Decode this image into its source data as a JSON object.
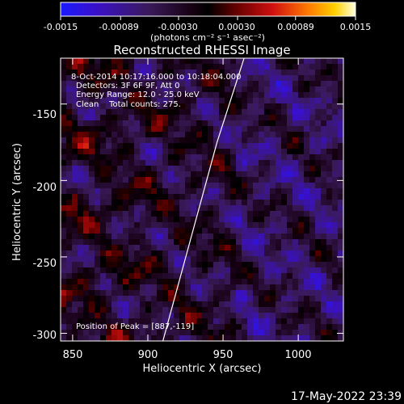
{
  "colorbar": {
    "ticks": [
      "-0.0015",
      "-0.00089",
      "-0.00030",
      "0.00030",
      "0.00089",
      "0.0015"
    ],
    "tick_values": [
      -0.0015,
      -0.00089,
      -0.0003,
      0.0003,
      0.00089,
      0.0015
    ],
    "range": [
      -0.0015,
      0.0015
    ],
    "unit_label": "(photons cm⁻² s⁻¹ asec⁻²)"
  },
  "chart_data": {
    "type": "heatmap",
    "title": "Reconstructed RHESSI Image",
    "xlabel": "Heliocentric X (arcsec)",
    "ylabel": "Heliocentric Y (arcsec)",
    "xlim": [
      842,
      1030
    ],
    "ylim": [
      -305,
      -120
    ],
    "xticks": [
      "850",
      "900",
      "950",
      "1000"
    ],
    "xtick_values": [
      850,
      900,
      950,
      1000
    ],
    "yticks": [
      "-150",
      "-200",
      "-250",
      "-300"
    ],
    "ytick_values": [
      -150,
      -200,
      -250,
      -300
    ],
    "limb_curve": {
      "x": [
        910,
        928,
        946,
        964
      ],
      "y": [
        -305,
        -240,
        -175,
        -120
      ]
    },
    "annotations": {
      "time_range": "8-Oct-2014 10:17:16.000 to 10:18:04.000",
      "detectors": "Detectors: 3F 6F 9F, Att 0",
      "energy_range": "Energy Range: 12.0 - 25.0 keV",
      "clean_line": "Clean    Total counts: 275.",
      "peak_position": "Position of Peak = [887,-119]"
    }
  },
  "footer": {
    "timestamp": "17-May-2022 23:39"
  }
}
